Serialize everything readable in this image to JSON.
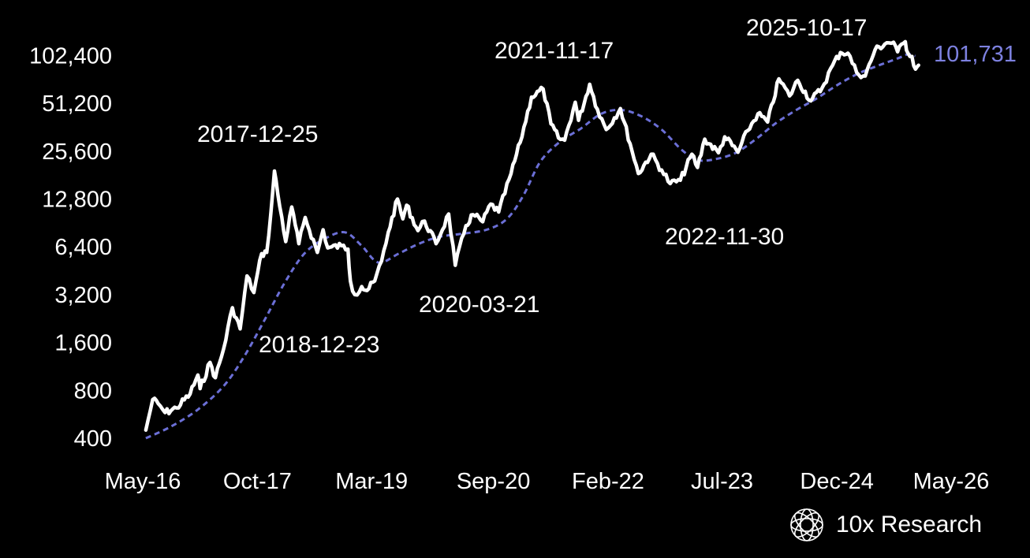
{
  "chart_data": {
    "type": "line",
    "title": "",
    "xlabel": "",
    "ylabel": "",
    "y_scale": "log2",
    "ylim": [
      400,
      128000
    ],
    "xlim": [
      "2016-05-01",
      "2026-05-01"
    ],
    "y_ticks": [
      400,
      800,
      1600,
      3200,
      6400,
      12800,
      25600,
      51200,
      102400
    ],
    "y_tick_labels": [
      "400",
      "800",
      "1,600",
      "3,200",
      "6,400",
      "12,800",
      "25,600",
      "51,200",
      "102,400"
    ],
    "x_ticks": [
      "2016-05-01",
      "2017-10-01",
      "2019-03-01",
      "2020-09-01",
      "2022-02-01",
      "2023-07-01",
      "2024-12-01",
      "2026-05-01"
    ],
    "x_tick_labels": [
      "May-16",
      "Oct-17",
      "Mar-19",
      "Sep-20",
      "Feb-22",
      "Jul-23",
      "Dec-24",
      "May-26"
    ],
    "grid": false,
    "legend": "none",
    "series": [
      {
        "color": "#ffffff",
        "style": "solid",
        "points": [
          [
            "2016-05-15",
            450
          ],
          [
            "2016-06-15",
            700
          ],
          [
            "2016-07-10",
            660
          ],
          [
            "2016-08-10",
            580
          ],
          [
            "2016-10-01",
            620
          ],
          [
            "2016-12-01",
            760
          ],
          [
            "2017-01-05",
            1000
          ],
          [
            "2017-01-15",
            820
          ],
          [
            "2017-03-01",
            1200
          ],
          [
            "2017-03-25",
            960
          ],
          [
            "2017-05-01",
            1450
          ],
          [
            "2017-06-10",
            2650
          ],
          [
            "2017-07-15",
            1950
          ],
          [
            "2017-08-15",
            4200
          ],
          [
            "2017-09-15",
            3300
          ],
          [
            "2017-10-20",
            5800
          ],
          [
            "2017-11-12",
            5900
          ],
          [
            "2017-12-01",
            10500
          ],
          [
            "2017-12-17",
            19200
          ],
          [
            "2018-01-01",
            13800
          ],
          [
            "2018-02-06",
            6900
          ],
          [
            "2018-03-05",
            11400
          ],
          [
            "2018-04-06",
            6700
          ],
          [
            "2018-05-05",
            9800
          ],
          [
            "2018-06-29",
            5900
          ],
          [
            "2018-07-25",
            8200
          ],
          [
            "2018-08-15",
            6300
          ],
          [
            "2018-10-15",
            6500
          ],
          [
            "2018-11-14",
            6200
          ],
          [
            "2018-11-25",
            3900
          ],
          [
            "2018-12-15",
            3200
          ],
          [
            "2019-01-15",
            3600
          ],
          [
            "2019-02-08",
            3400
          ],
          [
            "2019-03-15",
            3900
          ],
          [
            "2019-04-15",
            5200
          ],
          [
            "2019-05-15",
            7900
          ],
          [
            "2019-06-26",
            12800
          ],
          [
            "2019-07-20",
            9600
          ],
          [
            "2019-08-06",
            11700
          ],
          [
            "2019-09-26",
            8100
          ],
          [
            "2019-10-26",
            9300
          ],
          [
            "2019-12-17",
            6700
          ],
          [
            "2020-02-12",
            10300
          ],
          [
            "2020-03-13",
            4900
          ],
          [
            "2020-04-30",
            8700
          ],
          [
            "2020-06-01",
            10200
          ],
          [
            "2020-07-15",
            9200
          ],
          [
            "2020-08-20",
            11900
          ],
          [
            "2020-09-25",
            10600
          ],
          [
            "2020-11-20",
            18500
          ],
          [
            "2020-12-31",
            29000
          ],
          [
            "2021-02-20",
            56000
          ],
          [
            "2021-04-14",
            63000
          ],
          [
            "2021-05-19",
            38000
          ],
          [
            "2021-06-22",
            31000
          ],
          [
            "2021-07-20",
            30000
          ],
          [
            "2021-09-06",
            52000
          ],
          [
            "2021-09-21",
            40000
          ],
          [
            "2021-11-10",
            67500
          ],
          [
            "2021-12-15",
            47000
          ],
          [
            "2022-01-24",
            35000
          ],
          [
            "2022-03-29",
            47500
          ],
          [
            "2022-05-12",
            28500
          ],
          [
            "2022-06-18",
            18500
          ],
          [
            "2022-08-15",
            24500
          ],
          [
            "2022-10-01",
            19500
          ],
          [
            "2022-11-09",
            16000
          ],
          [
            "2022-12-25",
            16800
          ],
          [
            "2023-02-15",
            24500
          ],
          [
            "2023-03-12",
            20200
          ],
          [
            "2023-04-14",
            30500
          ],
          [
            "2023-06-15",
            25000
          ],
          [
            "2023-07-13",
            31500
          ],
          [
            "2023-09-11",
            25200
          ],
          [
            "2023-10-25",
            34500
          ],
          [
            "2023-12-10",
            44000
          ],
          [
            "2024-01-23",
            39000
          ],
          [
            "2024-03-14",
            73000
          ],
          [
            "2024-05-01",
            57000
          ],
          [
            "2024-06-07",
            71500
          ],
          [
            "2024-08-05",
            53000
          ],
          [
            "2024-09-25",
            64000
          ],
          [
            "2024-11-12",
            89000
          ],
          [
            "2024-12-17",
            107000
          ],
          [
            "2025-01-20",
            106000
          ],
          [
            "2025-02-28",
            80000
          ],
          [
            "2025-04-08",
            76000
          ],
          [
            "2025-05-22",
            111000
          ],
          [
            "2025-07-14",
            123000
          ],
          [
            "2025-08-14",
            124000
          ],
          [
            "2025-09-01",
            108000
          ],
          [
            "2025-10-06",
            125000
          ],
          [
            "2025-10-17",
            106500
          ],
          [
            "2025-11-05",
            101000
          ],
          [
            "2025-11-21",
            84000
          ],
          [
            "2025-12-05",
            89000
          ]
        ]
      },
      {
        "color": "#6b6fd6",
        "style": "dashed",
        "points": [
          [
            "2016-05-15",
            400
          ],
          [
            "2016-09-01",
            470
          ],
          [
            "2017-01-01",
            600
          ],
          [
            "2017-05-01",
            850
          ],
          [
            "2017-08-01",
            1300
          ],
          [
            "2017-11-01",
            2200
          ],
          [
            "2018-02-01",
            3800
          ],
          [
            "2018-05-01",
            5800
          ],
          [
            "2018-08-01",
            7200
          ],
          [
            "2018-11-01",
            7900
          ],
          [
            "2019-01-15",
            6500
          ],
          [
            "2019-04-01",
            5100
          ],
          [
            "2019-07-01",
            5800
          ],
          [
            "2019-10-01",
            6700
          ],
          [
            "2020-01-01",
            7400
          ],
          [
            "2020-04-01",
            7700
          ],
          [
            "2020-08-01",
            8200
          ],
          [
            "2020-11-01",
            9600
          ],
          [
            "2021-01-15",
            13500
          ],
          [
            "2021-04-01",
            22000
          ],
          [
            "2021-07-01",
            29500
          ],
          [
            "2021-10-01",
            35500
          ],
          [
            "2022-01-01",
            44000
          ],
          [
            "2022-04-01",
            46500
          ],
          [
            "2022-07-01",
            42500
          ],
          [
            "2022-10-01",
            35000
          ],
          [
            "2023-01-01",
            26000
          ],
          [
            "2023-03-15",
            22500
          ],
          [
            "2023-06-01",
            22800
          ],
          [
            "2023-09-01",
            25000
          ],
          [
            "2023-12-01",
            30500
          ],
          [
            "2024-03-01",
            38500
          ],
          [
            "2024-06-01",
            46500
          ],
          [
            "2024-09-01",
            55000
          ],
          [
            "2024-12-01",
            66500
          ],
          [
            "2025-03-01",
            78000
          ],
          [
            "2025-06-01",
            88000
          ],
          [
            "2025-09-01",
            98000
          ],
          [
            "2025-10-17",
            104000
          ],
          [
            "2025-11-20",
            101731
          ]
        ]
      }
    ],
    "annotations": [
      {
        "text": "2017-12-25",
        "date": "2017-12-25"
      },
      {
        "text": "2018-12-23",
        "date": "2018-12-23"
      },
      {
        "text": "2020-03-21",
        "date": "2020-03-21"
      },
      {
        "text": "2021-11-17",
        "date": "2021-11-17"
      },
      {
        "text": "2022-11-30",
        "date": "2022-11-30"
      },
      {
        "text": "2025-10-17",
        "date": "2025-10-17"
      }
    ],
    "end_label": {
      "text": "101,731",
      "color": "#7d81e0"
    }
  },
  "brand": {
    "text": "10x Research",
    "logo_icon": "sphere-logo-icon"
  }
}
